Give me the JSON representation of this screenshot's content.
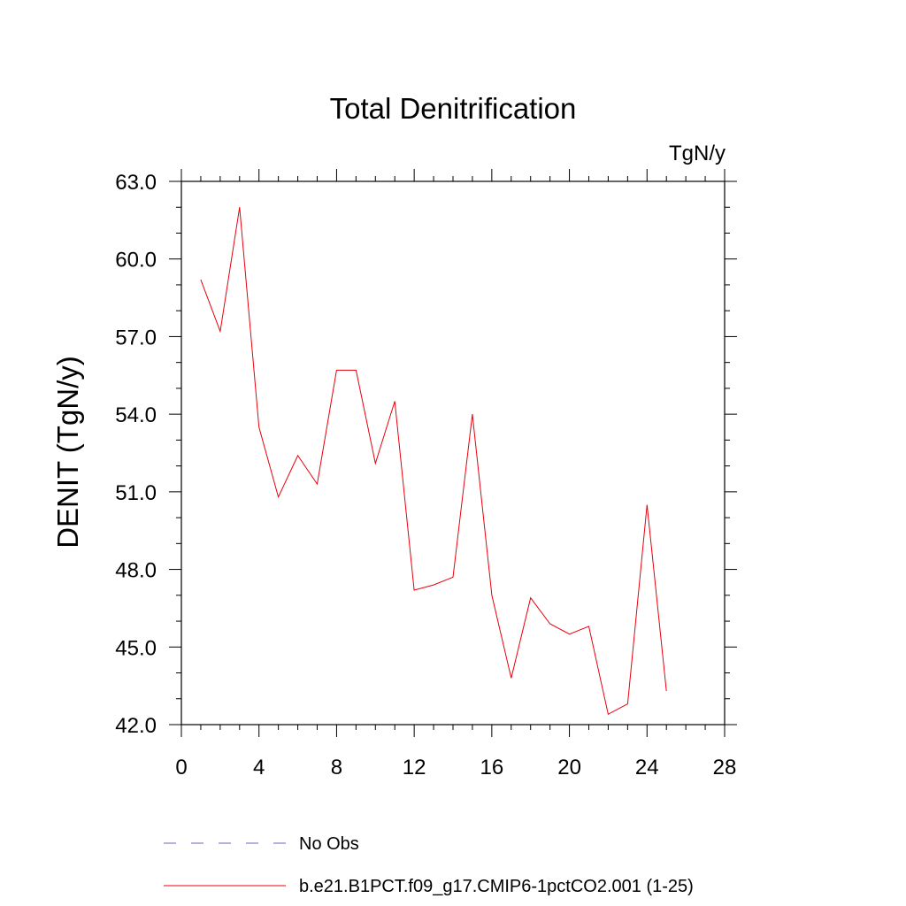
{
  "chart_data": {
    "type": "line",
    "title": "Total Denitrification",
    "units": "TgN/y",
    "ylabel": "DENIT  (TgN/y)",
    "xlabel": "",
    "xlim": [
      0,
      28
    ],
    "ylim": [
      42.0,
      63.0
    ],
    "x_ticks": [
      "0",
      "4",
      "8",
      "12",
      "16",
      "20",
      "24",
      "28"
    ],
    "y_ticks": [
      "42.0",
      "45.0",
      "48.0",
      "51.0",
      "54.0",
      "57.0",
      "60.0",
      "63.0"
    ],
    "legend_position": "bottom",
    "legend": [
      {
        "label": "No Obs",
        "color": "#6b5fd0",
        "style": "dashed"
      },
      {
        "label": "b.e21.B1PCT.f09_g17.CMIP6-1pctCO2.001 (1-25)",
        "color": "#e8000b",
        "style": "solid"
      }
    ],
    "series": [
      {
        "name": "b.e21.B1PCT.f09_g17.CMIP6-1pctCO2.001 (1-25)",
        "color": "#e8000b",
        "x": [
          1,
          2,
          3,
          4,
          5,
          6,
          7,
          8,
          9,
          10,
          11,
          12,
          13,
          14,
          15,
          16,
          17,
          18,
          19,
          20,
          21,
          22,
          23,
          24,
          25
        ],
        "y": [
          59.2,
          57.2,
          62.0,
          53.5,
          50.8,
          52.4,
          51.3,
          55.7,
          55.7,
          52.1,
          54.5,
          47.2,
          47.4,
          47.7,
          54.0,
          47.0,
          43.8,
          46.9,
          45.9,
          45.5,
          45.8,
          42.4,
          42.8,
          50.5,
          43.3
        ]
      }
    ]
  }
}
